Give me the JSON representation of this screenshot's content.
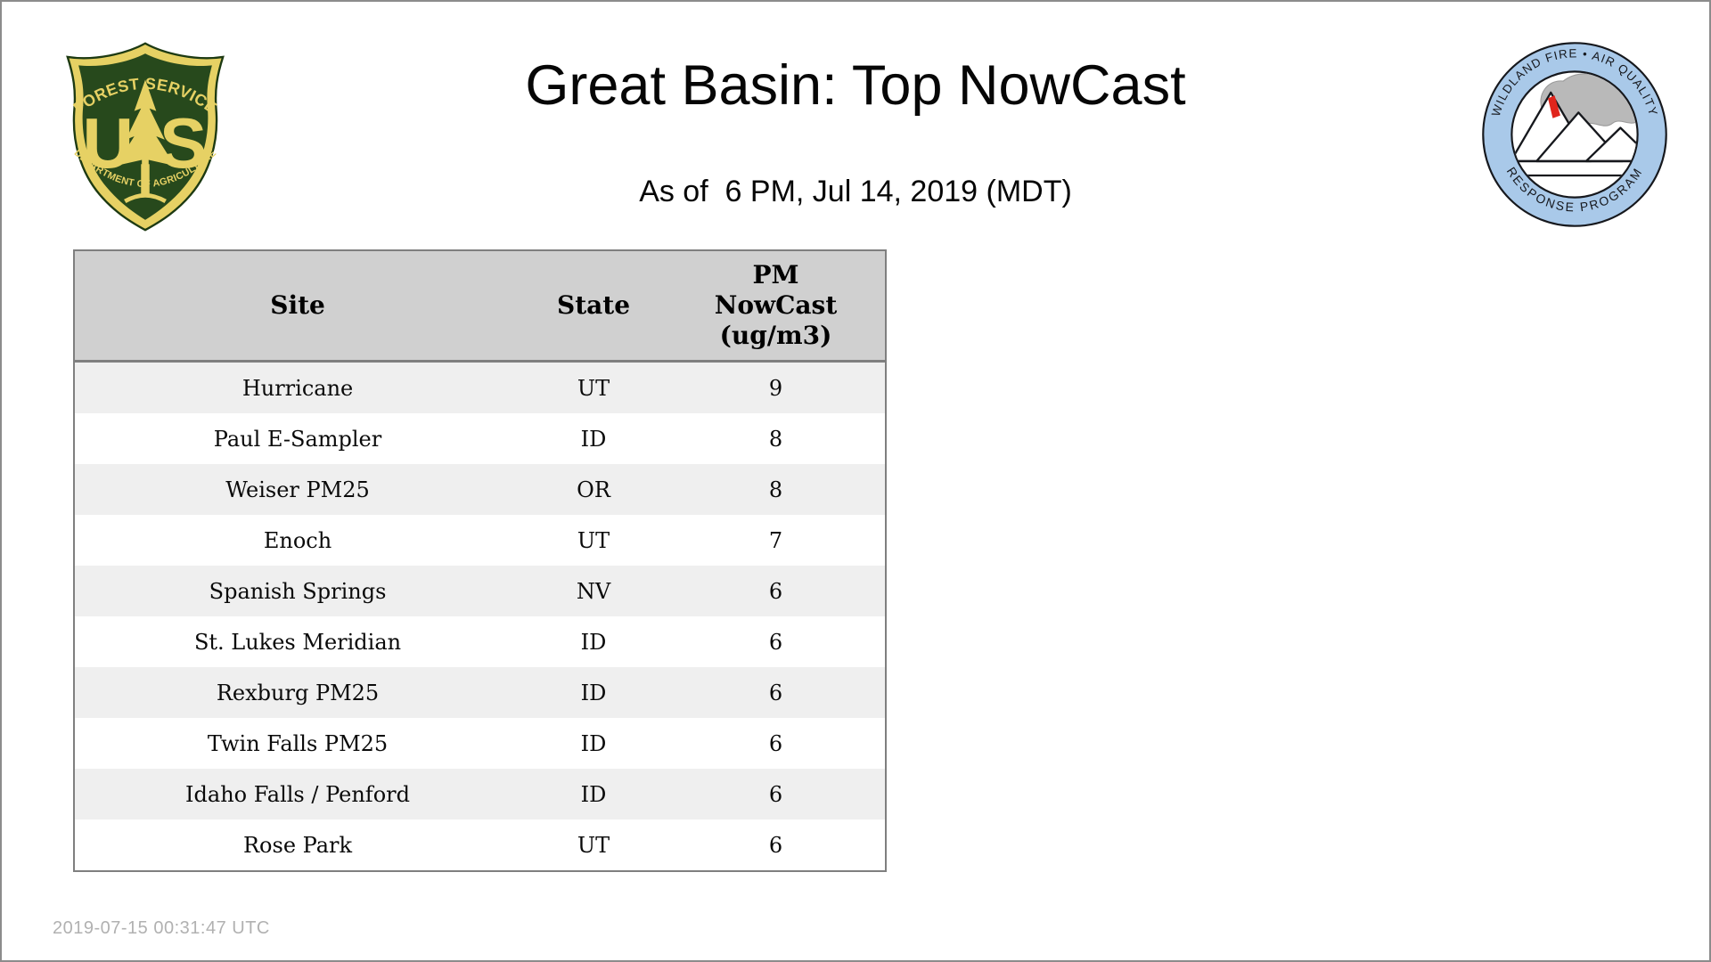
{
  "page": {
    "title": "Great Basin: Top NowCast",
    "subtitle": "As of  6 PM, Jul 14, 2019 (MDT)",
    "footer_timestamp": "2019-07-15 00:31:47 UTC"
  },
  "logos": {
    "forest_service": {
      "top_arc": "FOREST SERVICE",
      "letter_left": "U",
      "letter_right": "S",
      "bottom_arc": "DEPARTMENT OF AGRICULTURE",
      "colors": {
        "green": "#27491c",
        "gold": "#e6d164",
        "outline": "#1d3a12"
      }
    },
    "wfaqrp": {
      "top_arc": "WILDLAND FIRE • AIR QUALITY",
      "bottom_arc": "RESPONSE PROGRAM",
      "colors": {
        "ring_blue": "#a9c9e9",
        "smoke_gray": "#b9b9b9",
        "flame_red": "#e0251c",
        "line_black": "#16181d"
      }
    }
  },
  "table": {
    "columns": {
      "site": "Site",
      "state": "State",
      "pm_line1": "PM",
      "pm_line2": "NowCast",
      "pm_line3": "(ug/m3)"
    },
    "rows": [
      {
        "site": "Hurricane",
        "state": "UT",
        "value": "9"
      },
      {
        "site": "Paul E-Sampler",
        "state": "ID",
        "value": "8"
      },
      {
        "site": "Weiser PM25",
        "state": "OR",
        "value": "8"
      },
      {
        "site": "Enoch",
        "state": "UT",
        "value": "7"
      },
      {
        "site": "Spanish Springs",
        "state": "NV",
        "value": "6"
      },
      {
        "site": "St. Lukes Meridian",
        "state": "ID",
        "value": "6"
      },
      {
        "site": "Rexburg PM25",
        "state": "ID",
        "value": "6"
      },
      {
        "site": "Twin Falls PM25",
        "state": "ID",
        "value": "6"
      },
      {
        "site": "Idaho Falls / Penford",
        "state": "ID",
        "value": "6"
      },
      {
        "site": "Rose Park",
        "state": "UT",
        "value": "6"
      }
    ]
  }
}
